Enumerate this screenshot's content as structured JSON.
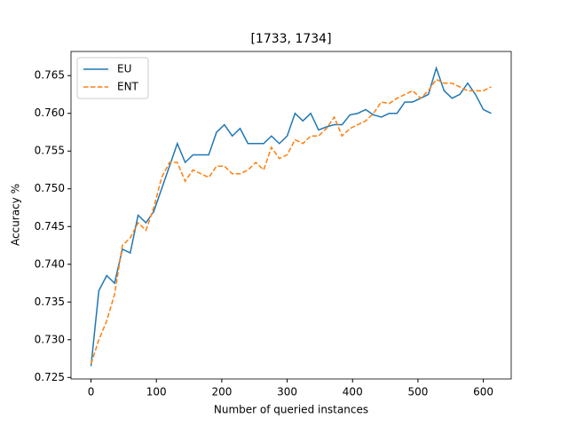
{
  "chart_data": {
    "type": "line",
    "title": "[1733, 1734]",
    "x_label": "Number of queried instances",
    "y_label": "Accuracy %",
    "x": [
      0,
      12,
      24,
      36,
      48,
      60,
      72,
      84,
      96,
      108,
      120,
      132,
      144,
      156,
      168,
      180,
      192,
      204,
      216,
      228,
      240,
      252,
      264,
      276,
      288,
      300,
      312,
      324,
      336,
      348,
      360,
      372,
      384,
      396,
      408,
      420,
      432,
      444,
      456,
      468,
      480,
      492,
      504,
      516,
      528,
      540,
      552,
      564,
      576,
      588,
      600,
      612
    ],
    "series": [
      {
        "name": "EU",
        "color": "#1f77b4",
        "linestyle": "solid",
        "values": [
          0.7265,
          0.7365,
          0.7385,
          0.7375,
          0.742,
          0.7415,
          0.7465,
          0.7455,
          0.747,
          0.75,
          0.753,
          0.756,
          0.7535,
          0.7545,
          0.7545,
          0.7545,
          0.7575,
          0.7585,
          0.757,
          0.758,
          0.756,
          0.756,
          0.756,
          0.757,
          0.756,
          0.757,
          0.76,
          0.759,
          0.76,
          0.7578,
          0.7582,
          0.7585,
          0.7585,
          0.7598,
          0.76,
          0.7605,
          0.7598,
          0.7595,
          0.76,
          0.76,
          0.7615,
          0.7615,
          0.762,
          0.7625,
          0.766,
          0.763,
          0.762,
          0.7625,
          0.764,
          0.7625,
          0.7605,
          0.76
        ]
      },
      {
        "name": "ENT",
        "color": "#ff7f0e",
        "linestyle": "dashed",
        "values": [
          0.7268,
          0.73,
          0.7325,
          0.736,
          0.7425,
          0.7435,
          0.7455,
          0.7445,
          0.7475,
          0.7515,
          0.7535,
          0.7535,
          0.751,
          0.7525,
          0.752,
          0.7515,
          0.753,
          0.753,
          0.752,
          0.752,
          0.7525,
          0.7535,
          0.7525,
          0.7555,
          0.754,
          0.7545,
          0.7565,
          0.756,
          0.757,
          0.757,
          0.758,
          0.7595,
          0.757,
          0.758,
          0.7585,
          0.759,
          0.76,
          0.7615,
          0.7613,
          0.762,
          0.7625,
          0.763,
          0.762,
          0.763,
          0.7645,
          0.764,
          0.764,
          0.7635,
          0.763,
          0.763,
          0.763,
          0.7635
        ]
      }
    ],
    "xlim": [
      -30.6,
      642.6
    ],
    "xticks": [
      0,
      100,
      200,
      300,
      400,
      500,
      600
    ],
    "ylim": [
      0.7248,
      0.7682
    ],
    "yticks": [
      0.725,
      {
        "value": 0.73,
        "label": "0.730"
      },
      0.735,
      {
        "value": 0.74,
        "label": "0.740"
      },
      0.745,
      {
        "value": 0.75,
        "label": "0.750"
      },
      0.755,
      {
        "value": 0.76,
        "label": "0.760"
      },
      0.765
    ],
    "legend": "upper left",
    "grid": false
  }
}
